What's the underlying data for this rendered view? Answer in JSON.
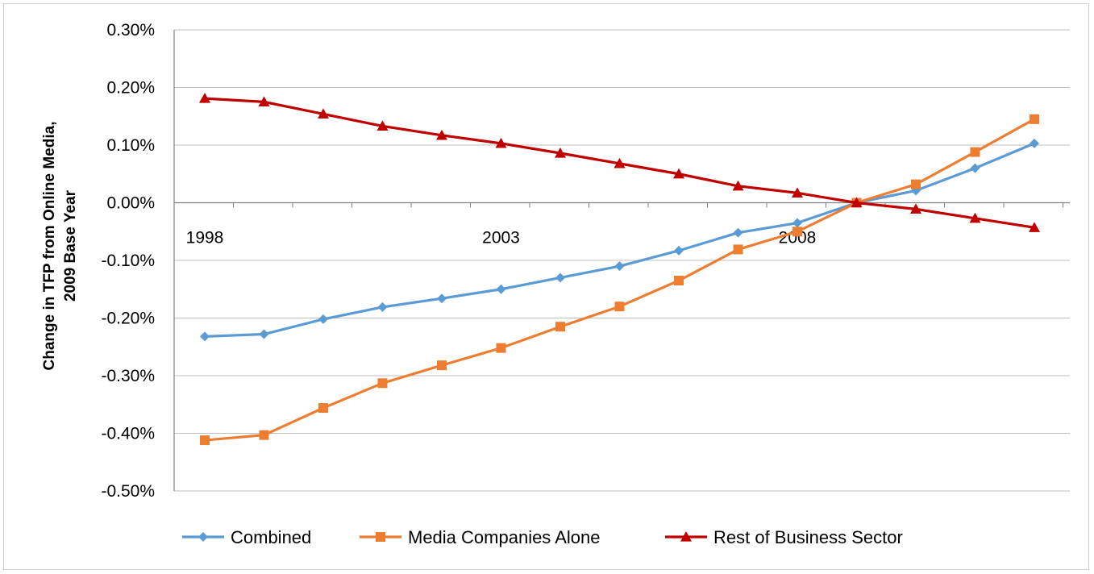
{
  "chart_data": {
    "type": "line",
    "x": [
      "1998",
      "1999",
      "2000",
      "2001",
      "2002",
      "2003",
      "2004",
      "2005",
      "2006",
      "2007",
      "2008",
      "2009",
      "2010",
      "2011",
      "2012"
    ],
    "x_tick_labels": [
      "1998",
      "2003",
      "2008"
    ],
    "ylabel_line1": "Change in TFP from Online Media,",
    "ylabel_line2": "2009 Base Year",
    "ylim": [
      -0.5,
      0.3
    ],
    "y_ticks": [
      {
        "value": 0.3,
        "label": "0.30%"
      },
      {
        "value": 0.2,
        "label": "0.20%"
      },
      {
        "value": 0.1,
        "label": "0.10%"
      },
      {
        "value": 0.0,
        "label": "0.00%"
      },
      {
        "value": -0.1,
        "label": "-0.10%"
      },
      {
        "value": -0.2,
        "label": "-0.20%"
      },
      {
        "value": -0.3,
        "label": "-0.30%"
      },
      {
        "value": -0.4,
        "label": "-0.40%"
      },
      {
        "value": -0.5,
        "label": "-0.50%"
      }
    ],
    "grid": true,
    "legend_position": "bottom",
    "series": [
      {
        "name": "Combined",
        "color": "#5B9BD5",
        "marker": "diamond",
        "values": [
          -0.232,
          -0.228,
          -0.202,
          -0.181,
          -0.166,
          -0.15,
          -0.13,
          -0.11,
          -0.083,
          -0.052,
          -0.035,
          0.0,
          0.021,
          0.06,
          0.103
        ]
      },
      {
        "name": "Media Companies Alone",
        "color": "#ED7D31",
        "marker": "square",
        "values": [
          -0.412,
          -0.403,
          -0.356,
          -0.313,
          -0.282,
          -0.252,
          -0.215,
          -0.18,
          -0.135,
          -0.081,
          -0.05,
          0.0,
          0.032,
          0.088,
          0.145
        ]
      },
      {
        "name": "Rest of Business Sector",
        "color": "#C00000",
        "marker": "triangle",
        "values": [
          0.181,
          0.175,
          0.154,
          0.133,
          0.117,
          0.103,
          0.086,
          0.068,
          0.05,
          0.029,
          0.017,
          0.0,
          -0.011,
          -0.027,
          -0.043
        ]
      }
    ]
  }
}
